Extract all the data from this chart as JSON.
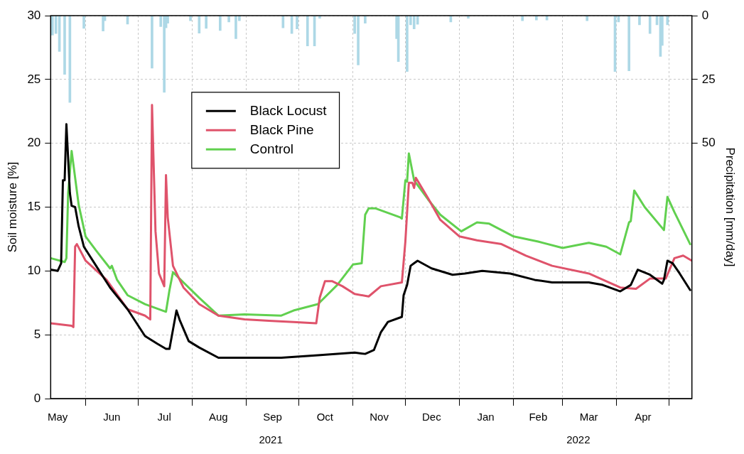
{
  "chart_data": {
    "type": "line",
    "ylabel": "Soil moisture [%]",
    "y2label": "Precipitation [mm/day]",
    "xlim": [
      "2021-05-12",
      "2022-05-14"
    ],
    "xticks": [
      {
        "value": "2021-05-16",
        "label": "May"
      },
      {
        "value": "2021-06-01",
        "label": null
      },
      {
        "value": "2021-06-16",
        "label": "Jun"
      },
      {
        "value": "2021-07-01",
        "label": null
      },
      {
        "value": "2021-07-16",
        "label": "Jul"
      },
      {
        "value": "2021-08-01",
        "label": null
      },
      {
        "value": "2021-08-16",
        "label": "Aug"
      },
      {
        "value": "2021-09-01",
        "label": null
      },
      {
        "value": "2021-09-16",
        "label": "Sep"
      },
      {
        "value": "2021-10-01",
        "label": null
      },
      {
        "value": "2021-10-16",
        "label": "Oct"
      },
      {
        "value": "2021-11-01",
        "label": null
      },
      {
        "value": "2021-11-16",
        "label": "Nov"
      },
      {
        "value": "2021-12-01",
        "label": null
      },
      {
        "value": "2021-12-16",
        "label": "Dec"
      },
      {
        "value": "2022-01-01",
        "label": null
      },
      {
        "value": "2022-01-16",
        "label": "Jan"
      },
      {
        "value": "2022-02-01",
        "label": null
      },
      {
        "value": "2022-02-15",
        "label": "Feb"
      },
      {
        "value": "2022-03-01",
        "label": null
      },
      {
        "value": "2022-03-16",
        "label": "Mar"
      },
      {
        "value": "2022-04-01",
        "label": null
      },
      {
        "value": "2022-04-16",
        "label": "Apr"
      },
      {
        "value": "2022-05-01",
        "label": null
      }
    ],
    "x2lim": [
      "2021-05-12",
      "2022-05-14"
    ],
    "x2ticks": [
      {
        "value": "2021-09-15",
        "label": "2021"
      },
      {
        "value": "2022-03-10",
        "label": "2022"
      }
    ],
    "ylim": [
      0,
      30
    ],
    "yticks": [
      0,
      5,
      10,
      15,
      20,
      25,
      30
    ],
    "y2lim": [
      150,
      0
    ],
    "y2ticks": [
      0,
      25,
      50
    ],
    "grid": true,
    "legend": "top left",
    "series": [
      {
        "name": "Black Locust",
        "color": "#000000",
        "x": [
          "2021-05-12",
          "2021-05-16",
          "2021-05-18",
          "2021-05-19",
          "2021-05-20",
          "2021-05-21",
          "2021-05-23",
          "2021-05-24",
          "2021-05-26",
          "2021-05-28",
          "2021-05-31",
          "2021-06-07",
          "2021-06-15",
          "2021-06-25",
          "2021-07-05",
          "2021-07-12",
          "2021-07-17",
          "2021-07-19",
          "2021-07-23",
          "2021-07-25",
          "2021-07-30",
          "2021-08-05",
          "2021-08-16",
          "2021-08-31",
          "2021-09-21",
          "2021-10-12",
          "2021-11-02",
          "2021-11-08",
          "2021-11-13",
          "2021-11-17",
          "2021-11-21",
          "2021-11-29",
          "2021-11-30",
          "2021-12-02",
          "2021-12-04",
          "2021-12-06",
          "2021-12-08",
          "2021-12-16",
          "2021-12-28",
          "2022-01-04",
          "2022-01-14",
          "2022-01-30",
          "2022-02-13",
          "2022-02-23",
          "2022-03-16",
          "2022-03-24",
          "2022-04-03",
          "2022-04-09",
          "2022-04-13",
          "2022-04-20",
          "2022-04-27",
          "2022-04-28",
          "2022-04-30",
          "2022-05-03",
          "2022-05-07",
          "2022-05-13"
        ],
        "values": [
          10.1,
          10.0,
          10.6,
          17.1,
          17.1,
          21.5,
          16.1,
          15.1,
          15.0,
          13.5,
          11.9,
          10.4,
          8.7,
          7.0,
          4.9,
          4.3,
          3.9,
          3.9,
          6.9,
          6.1,
          4.5,
          4.0,
          3.2,
          3.2,
          3.2,
          3.4,
          3.6,
          3.5,
          3.8,
          5.2,
          6.0,
          6.4,
          8.1,
          8.9,
          10.4,
          10.6,
          10.8,
          10.2,
          9.7,
          9.8,
          10.0,
          9.8,
          9.3,
          9.1,
          9.1,
          8.9,
          8.4,
          8.9,
          10.1,
          9.7,
          9.0,
          9.3,
          10.8,
          10.6,
          9.8,
          8.5
        ]
      },
      {
        "name": "Black Pine",
        "color": "#df536b",
        "x": [
          "2021-05-12",
          "2021-05-24",
          "2021-05-25",
          "2021-05-26",
          "2021-05-27",
          "2021-06-01",
          "2021-06-13",
          "2021-06-25",
          "2021-07-05",
          "2021-07-08",
          "2021-07-09",
          "2021-07-11",
          "2021-07-13",
          "2021-07-16",
          "2021-07-17",
          "2021-07-18",
          "2021-07-21",
          "2021-07-27",
          "2021-08-05",
          "2021-08-16",
          "2021-08-31",
          "2021-09-14",
          "2021-09-28",
          "2021-10-11",
          "2021-10-13",
          "2021-10-16",
          "2021-10-20",
          "2021-10-26",
          "2021-11-02",
          "2021-11-10",
          "2021-11-17",
          "2021-11-29",
          "2021-12-01",
          "2021-12-03",
          "2021-12-05",
          "2021-12-06",
          "2021-12-07",
          "2021-12-14",
          "2021-12-21",
          "2022-01-01",
          "2022-01-11",
          "2022-01-25",
          "2022-02-08",
          "2022-02-23",
          "2022-03-16",
          "2022-04-03",
          "2022-04-12",
          "2022-04-20",
          "2022-04-29",
          "2022-05-04",
          "2022-05-09",
          "2022-05-14"
        ],
        "values": [
          5.9,
          5.7,
          5.6,
          11.9,
          12.1,
          10.8,
          9.3,
          7.0,
          6.5,
          6.2,
          23.0,
          13.1,
          9.8,
          8.8,
          17.5,
          14.2,
          10.4,
          8.7,
          7.4,
          6.5,
          6.2,
          6.1,
          6.0,
          5.9,
          7.9,
          9.2,
          9.2,
          8.8,
          8.2,
          8.0,
          8.8,
          9.1,
          12.3,
          16.9,
          16.9,
          16.5,
          17.3,
          15.7,
          14.0,
          12.7,
          12.4,
          12.1,
          11.2,
          10.4,
          9.8,
          8.7,
          8.6,
          9.4,
          9.4,
          11.0,
          11.2,
          10.8
        ]
      },
      {
        "name": "Control",
        "color": "#61d04f",
        "x": [
          "2021-05-12",
          "2021-05-20",
          "2021-05-21",
          "2021-05-22",
          "2021-05-24",
          "2021-05-28",
          "2021-06-01",
          "2021-06-07",
          "2021-06-15",
          "2021-06-16",
          "2021-06-19",
          "2021-06-25",
          "2021-07-05",
          "2021-07-17",
          "2021-07-19",
          "2021-07-21",
          "2021-07-27",
          "2021-08-05",
          "2021-08-16",
          "2021-08-31",
          "2021-09-21",
          "2021-09-28",
          "2021-10-12",
          "2021-10-23",
          "2021-11-01",
          "2021-11-06",
          "2021-11-08",
          "2021-11-10",
          "2021-11-14",
          "2021-11-28",
          "2021-11-29",
          "2021-12-01",
          "2021-12-02",
          "2021-12-03",
          "2021-12-06",
          "2021-12-14",
          "2021-12-21",
          "2022-01-02",
          "2022-01-11",
          "2022-01-18",
          "2022-02-01",
          "2022-02-15",
          "2022-03-01",
          "2022-03-16",
          "2022-03-26",
          "2022-04-03",
          "2022-04-08",
          "2022-04-09",
          "2022-04-11",
          "2022-04-17",
          "2022-04-28",
          "2022-04-30",
          "2022-05-04",
          "2022-05-13"
        ],
        "values": [
          11.0,
          10.7,
          11.0,
          16.1,
          19.4,
          15.2,
          12.7,
          11.6,
          10.2,
          10.4,
          9.3,
          8.1,
          7.4,
          6.8,
          8.5,
          9.9,
          9.1,
          7.9,
          6.5,
          6.6,
          6.5,
          6.9,
          7.4,
          8.9,
          10.5,
          10.6,
          14.4,
          14.9,
          14.9,
          14.2,
          14.1,
          17.1,
          17.0,
          19.2,
          17.1,
          15.6,
          14.4,
          13.1,
          13.8,
          13.7,
          12.7,
          12.3,
          11.8,
          12.2,
          11.9,
          11.3,
          13.8,
          13.9,
          16.3,
          15.0,
          13.2,
          15.8,
          14.6,
          12.1
        ]
      },
      {
        "type": "bar",
        "axis": "y2",
        "color": "#add8e6",
        "x": [
          "2021-05-13",
          "2021-05-15",
          "2021-05-17",
          "2021-05-20",
          "2021-05-23",
          "2021-05-31",
          "2021-06-11",
          "2021-06-12",
          "2021-06-25",
          "2021-07-09",
          "2021-07-14",
          "2021-07-16",
          "2021-07-17",
          "2021-07-18",
          "2021-07-31",
          "2021-08-05",
          "2021-08-09",
          "2021-08-17",
          "2021-08-22",
          "2021-08-26",
          "2021-08-28",
          "2021-09-22",
          "2021-09-27",
          "2021-09-30",
          "2021-10-06",
          "2021-10-10",
          "2021-10-13",
          "2021-11-02",
          "2021-11-04",
          "2021-11-08",
          "2021-11-26",
          "2021-11-27",
          "2021-12-02",
          "2021-12-04",
          "2021-12-06",
          "2021-12-08",
          "2021-12-27",
          "2022-01-06",
          "2022-02-06",
          "2022-02-14",
          "2022-02-20",
          "2022-03-15",
          "2022-03-31",
          "2022-04-02",
          "2022-04-08",
          "2022-04-14",
          "2022-04-20",
          "2022-04-24",
          "2022-04-26",
          "2022-04-27",
          "2022-04-30"
        ],
        "values": [
          7.6,
          7,
          14,
          23,
          34,
          5,
          6,
          2,
          3.3,
          20.6,
          4.3,
          30,
          4.8,
          3,
          2,
          6.9,
          5,
          5.8,
          2.5,
          9,
          2,
          4.8,
          7,
          5.2,
          11.9,
          11.9,
          1,
          7,
          19.3,
          3,
          9,
          18,
          21.9,
          3.6,
          5.2,
          3.4,
          2.5,
          1,
          2,
          1.7,
          1.7,
          2,
          21.9,
          2.5,
          21.6,
          3.6,
          7,
          3.6,
          16,
          11.7,
          3.6
        ]
      }
    ]
  }
}
